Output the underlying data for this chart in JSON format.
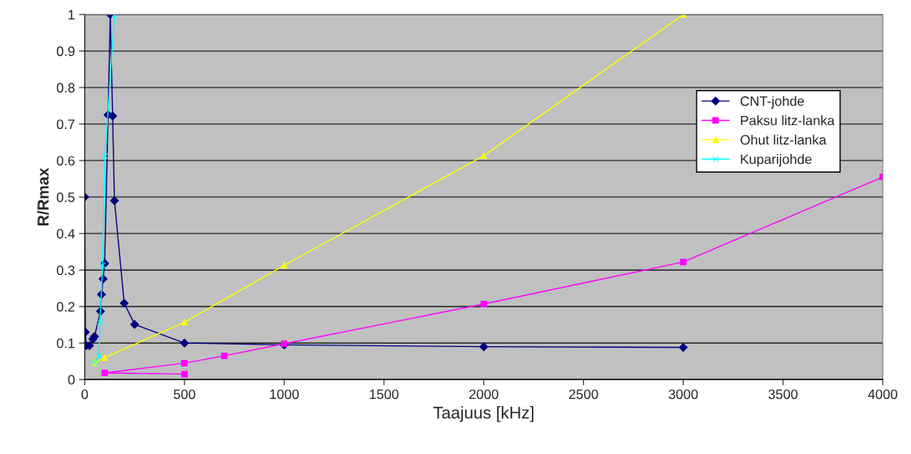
{
  "chart_data": {
    "type": "line",
    "xlabel": "Taajuus [kHz]",
    "ylabel": "R/Rmax",
    "xlim": [
      0,
      4000
    ],
    "xticks": [
      0,
      500,
      1000,
      1500,
      2000,
      2500,
      3000,
      3500,
      4000
    ],
    "ylim": [
      0,
      1
    ],
    "yticks": [
      0,
      0.1,
      0.2,
      0.3,
      0.4,
      0.5,
      0.6,
      0.7,
      0.8,
      0.9,
      1
    ],
    "grid": "y",
    "legend": "right",
    "line_style": "solid",
    "series": [
      {
        "name": "CNT-johde",
        "color": "#000080",
        "marker": "diamond",
        "x": [
          0,
          3,
          8,
          24,
          41,
          49,
          79,
          84,
          92,
          100,
          117,
          128,
          140,
          149,
          198,
          250,
          500,
          1000,
          2000,
          3000
        ],
        "values": [
          0.5,
          0.13,
          0.093,
          0.093,
          0.111,
          0.118,
          0.187,
          0.233,
          0.276,
          0.318,
          0.725,
          1.0,
          0.722,
          0.49,
          0.209,
          0.151,
          0.1,
          0.095,
          0.09,
          0.088
        ]
      },
      {
        "name": "Paksu litz-lanka",
        "color": "#ff00ff",
        "marker": "square",
        "x": [
          500,
          100,
          500,
          700,
          1000,
          2000,
          3000,
          4000
        ],
        "values": [
          0.015,
          0.018,
          0.045,
          0.065,
          0.098,
          0.207,
          0.322,
          0.555
        ]
      },
      {
        "name": "Ohut litz-lanka",
        "color": "#ffff00",
        "marker": "triangle",
        "x": [
          50,
          100,
          500,
          1000,
          2000,
          3000
        ],
        "values": [
          0.047,
          0.06,
          0.157,
          0.313,
          0.613,
          1.0
        ]
      },
      {
        "name": "Kuparijohde",
        "color": "#00ffff",
        "marker": "cross",
        "x": [
          49,
          72,
          76,
          90,
          102,
          149
        ],
        "values": [
          0.047,
          0.064,
          0.157,
          0.313,
          0.612,
          1.0
        ]
      }
    ]
  }
}
